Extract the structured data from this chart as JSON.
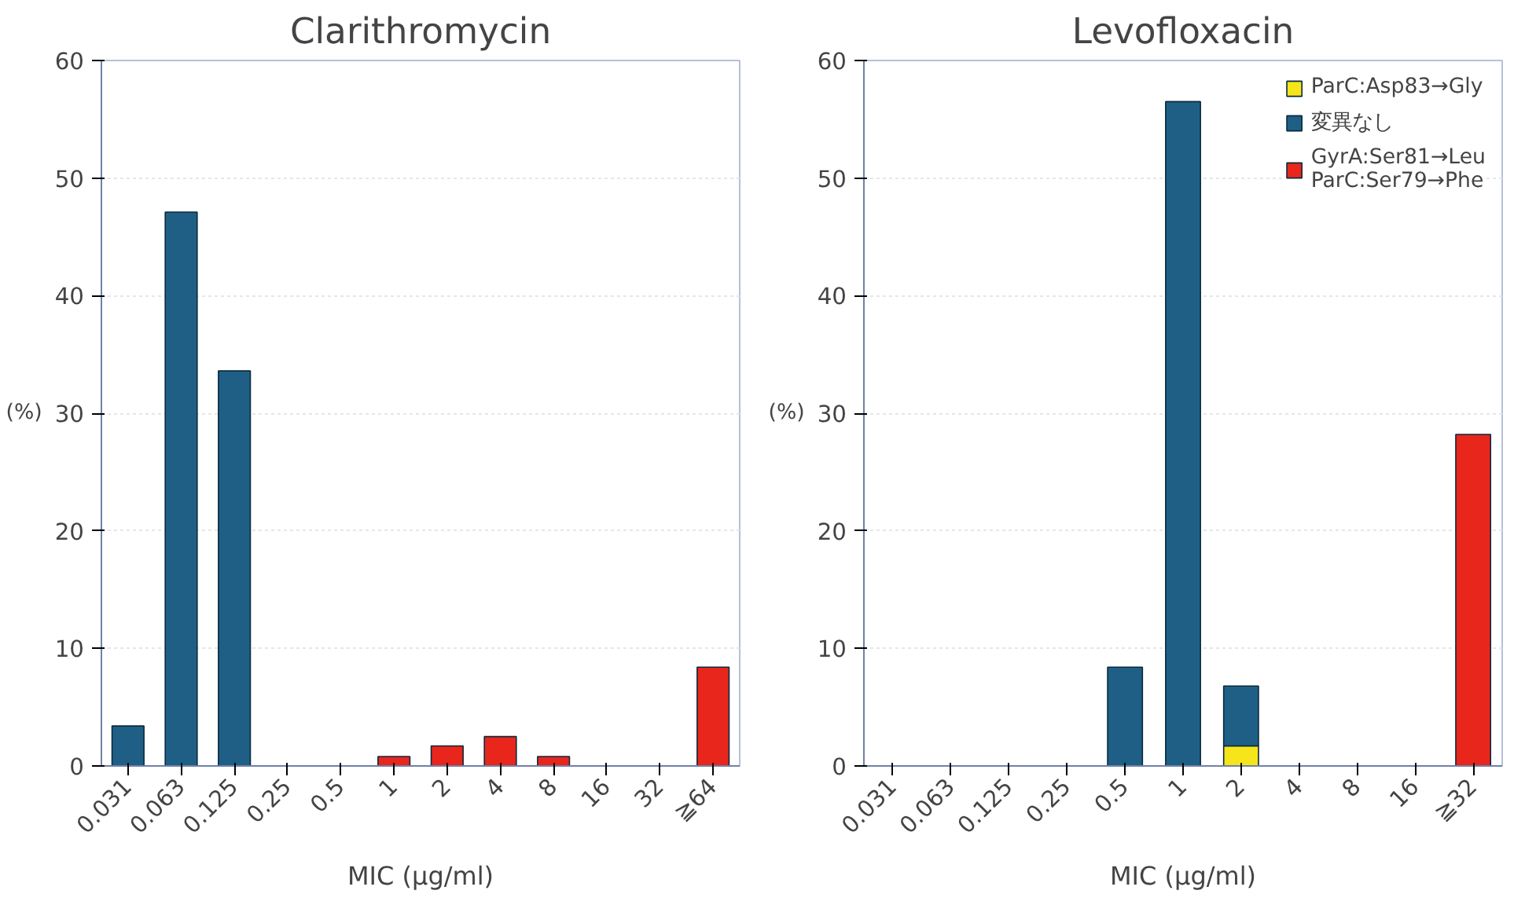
{
  "chart_data": [
    {
      "type": "bar",
      "title": "Clarithromycin",
      "xlabel": "MIC (μg/ml)",
      "ylabel": "(%)",
      "stacked": true,
      "categories": [
        "0.031",
        "0.063",
        "0.125",
        "0.25",
        "0.5",
        "1",
        "2",
        "4",
        "8",
        "16",
        "32",
        "≧64"
      ],
      "series": [
        {
          "color": "#1f5f86",
          "values": [
            3.4,
            47.1,
            33.6,
            null,
            null,
            null,
            null,
            null,
            null,
            null,
            null,
            null
          ]
        },
        {
          "color": "#e8261c",
          "values": [
            null,
            null,
            null,
            null,
            null,
            0.8,
            1.7,
            2.5,
            0.8,
            null,
            null,
            8.4
          ]
        }
      ],
      "ylim": [
        0,
        60
      ],
      "yticks": [
        0,
        10,
        20,
        30,
        40,
        50,
        60
      ],
      "grid": "y",
      "legend": false
    },
    {
      "type": "bar",
      "title": "Levofloxacin",
      "xlabel": "MIC (μg/ml)",
      "ylabel": "(%)",
      "stacked": true,
      "categories": [
        "0.031",
        "0.063",
        "0.125",
        "0.25",
        "0.5",
        "1",
        "2",
        "4",
        "8",
        "16",
        "≧32"
      ],
      "series": [
        {
          "name": "ParC:Asp83→Gly",
          "color": "#f5e51a",
          "values": [
            null,
            null,
            null,
            null,
            null,
            null,
            1.7,
            null,
            null,
            null,
            null
          ]
        },
        {
          "name": "変異なし",
          "color": "#1f5f86",
          "values": [
            null,
            null,
            null,
            null,
            8.4,
            56.5,
            5.1,
            null,
            null,
            null,
            null
          ]
        },
        {
          "name": "GyrA:Ser81→Leu\nParC:Ser79→Phe",
          "color": "#e8261c",
          "values": [
            null,
            null,
            null,
            null,
            null,
            null,
            null,
            null,
            null,
            null,
            28.2
          ]
        }
      ],
      "ylim": [
        0,
        60
      ],
      "yticks": [
        0,
        10,
        20,
        30,
        40,
        50,
        60
      ],
      "grid": "y",
      "legend": "top right"
    }
  ]
}
